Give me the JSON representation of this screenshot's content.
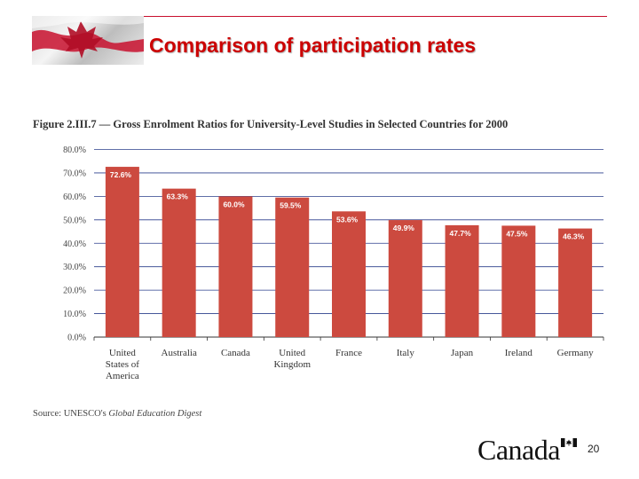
{
  "slide": {
    "title": "Comparison of participation rates",
    "page_number": "20",
    "wordmark": "Canada",
    "accent_color": "#c8102e"
  },
  "figure": {
    "caption": "Figure 2.III.7 — Gross Enrolment Ratios for University-Level Studies in Selected Countries for 2000",
    "source_prefix": "Source: UNESCO's ",
    "source_title": "Global Education Digest"
  },
  "chart_data": {
    "type": "bar",
    "title": "Figure 2.III.7 — Gross Enrolment Ratios for University-Level Studies in Selected Countries for 2000",
    "categories": [
      [
        "United",
        "States of",
        "America"
      ],
      [
        "Australia"
      ],
      [
        "Canada"
      ],
      [
        "United",
        "Kingdom"
      ],
      [
        "France"
      ],
      [
        "Italy"
      ],
      [
        "Japan"
      ],
      [
        "Ireland"
      ],
      [
        "Germany"
      ]
    ],
    "values": [
      72.6,
      63.3,
      60.0,
      59.5,
      53.6,
      49.9,
      47.7,
      47.5,
      46.3
    ],
    "value_labels": [
      "72.6%",
      "63.3%",
      "60.0%",
      "59.5%",
      "53.6%",
      "49.9%",
      "47.7%",
      "47.5%",
      "46.3%"
    ],
    "y_ticks": [
      0,
      10,
      20,
      30,
      40,
      50,
      60,
      70,
      80
    ],
    "y_tick_labels": [
      "0.0%",
      "10.0%",
      "20.0%",
      "30.0%",
      "40.0%",
      "50.0%",
      "60.0%",
      "70.0%",
      "80.0%"
    ],
    "ylim": [
      0,
      80
    ],
    "xlabel": "",
    "ylabel": "",
    "grid": true,
    "bar_color": "#cc4a3f",
    "grid_color": "#2b3f8c"
  }
}
